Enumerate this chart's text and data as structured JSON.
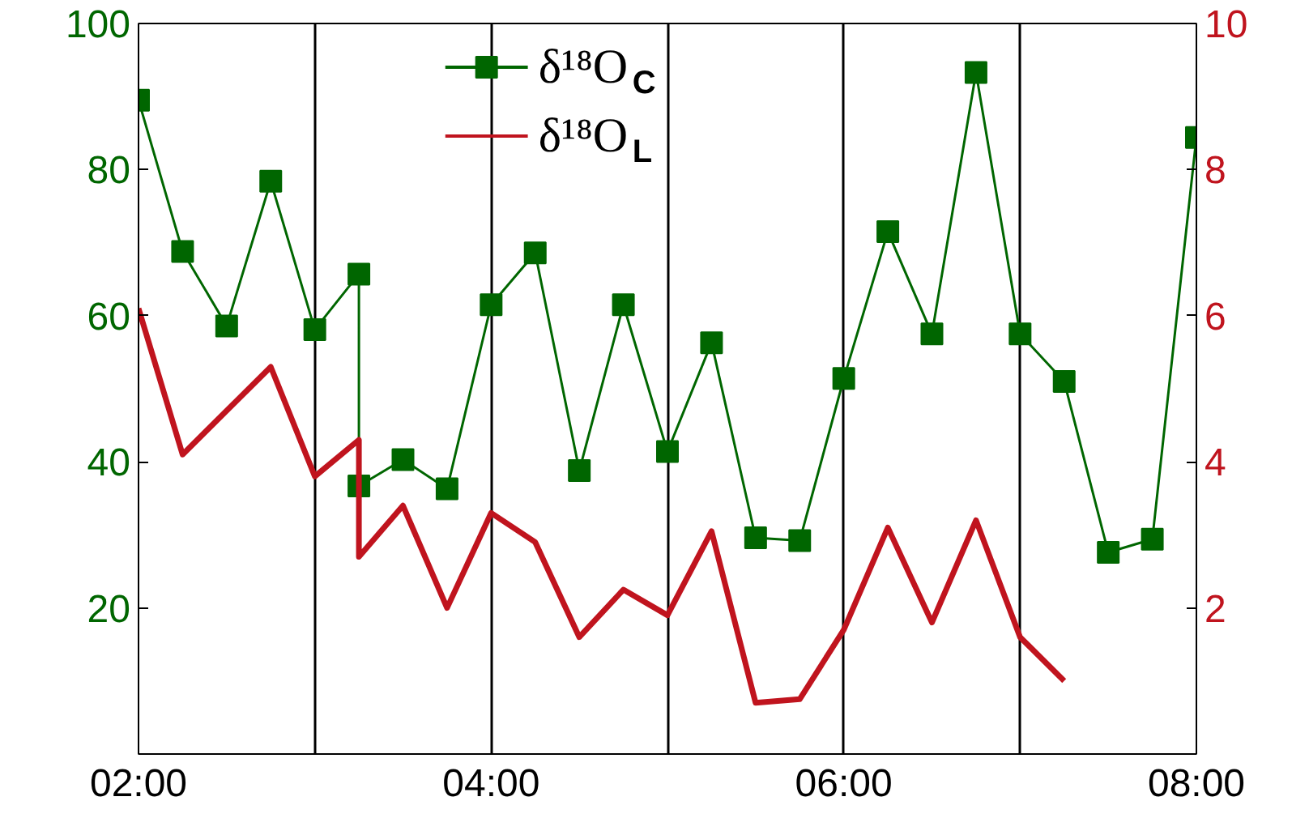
{
  "chart_data": {
    "type": "line",
    "x": [
      2,
      2.25,
      2.5,
      2.75,
      3,
      3.25,
      3.25,
      3.5,
      3.75,
      4,
      4.25,
      4.5,
      4.75,
      5,
      5.25,
      5.5,
      5.75,
      6,
      6.25,
      6.5,
      6.75,
      7,
      7.25,
      7.5,
      7.75,
      8
    ],
    "series": [
      {
        "name": "δ¹⁸O$_{C}$",
        "color": "#006600",
        "marker": "square",
        "values": [
          89.5,
          68.8,
          58.6,
          78.4,
          58.1,
          65.7,
          36.7,
          40.3,
          36.3,
          61.5,
          68.6,
          38.8,
          61.5,
          41.4,
          56.3,
          29.6,
          29.2,
          51.4,
          71.5,
          57.5,
          93.3,
          57.5,
          51.0,
          27.6,
          29.4,
          84.4
        ]
      },
      {
        "name": "δ¹⁸O$_{L}$",
        "color": "#c0141e",
        "marker": "none",
        "axis": "y2",
        "x": [
          2,
          2.25,
          2.75,
          3,
          3.25,
          3.25,
          3.5,
          3.75,
          4,
          4.25,
          4.5,
          4.75,
          5,
          5.25,
          5.5,
          5.75,
          6,
          6.25,
          6.5,
          6.75,
          7,
          7.25
        ],
        "values": [
          6.1,
          4.1,
          5.3,
          3.8,
          4.3,
          2.7,
          3.4,
          2.0,
          3.3,
          2.9,
          1.6,
          2.25,
          1.9,
          3.05,
          0.7,
          0.75,
          1.7,
          3.1,
          1.8,
          3.2,
          1.6,
          1.0
        ]
      }
    ],
    "xlim": [
      2,
      8
    ],
    "xticks": [
      {
        "value": 2,
        "label": "02:00"
      },
      {
        "value": 3,
        "label": null
      },
      {
        "value": 4,
        "label": "04:00"
      },
      {
        "value": 5,
        "label": null
      },
      {
        "value": 6,
        "label": "06:00"
      },
      {
        "value": 7,
        "label": null
      },
      {
        "value": 8,
        "label": "08:00"
      }
    ],
    "ylim": [
      0,
      100
    ],
    "yticks": [
      20,
      40,
      60,
      80,
      100
    ],
    "y2lim": [
      0,
      10
    ],
    "y2ticks": [
      2,
      4,
      6,
      8,
      10
    ],
    "grid": "x",
    "legend": "top"
  }
}
